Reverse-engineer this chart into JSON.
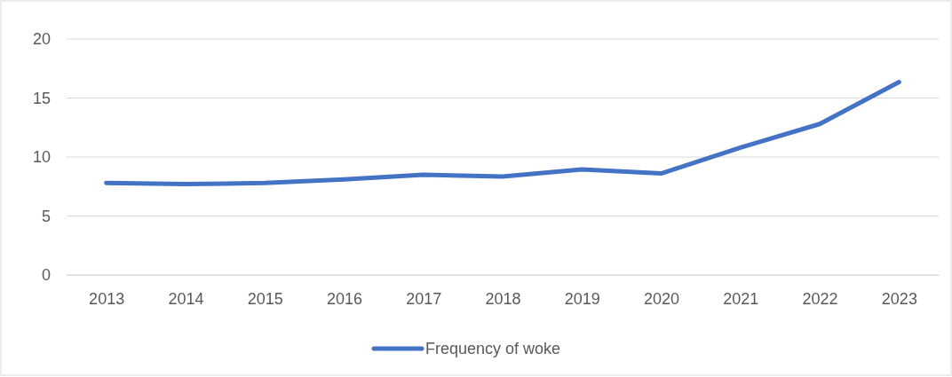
{
  "chart_data": {
    "type": "line",
    "categories": [
      "2013",
      "2014",
      "2015",
      "2016",
      "2017",
      "2018",
      "2019",
      "2020",
      "2021",
      "2022",
      "2023"
    ],
    "series": [
      {
        "name": "Frequency of woke",
        "color": "#4472c4",
        "values": [
          7.8,
          7.7,
          7.8,
          8.1,
          8.5,
          8.35,
          8.95,
          8.6,
          10.8,
          12.8,
          16.35
        ]
      }
    ],
    "ylim": [
      0,
      20
    ],
    "yticks": [
      0,
      5,
      10,
      15,
      20
    ],
    "grid": "y",
    "legend": "bottom",
    "marker": "none",
    "line_style": "solid"
  }
}
